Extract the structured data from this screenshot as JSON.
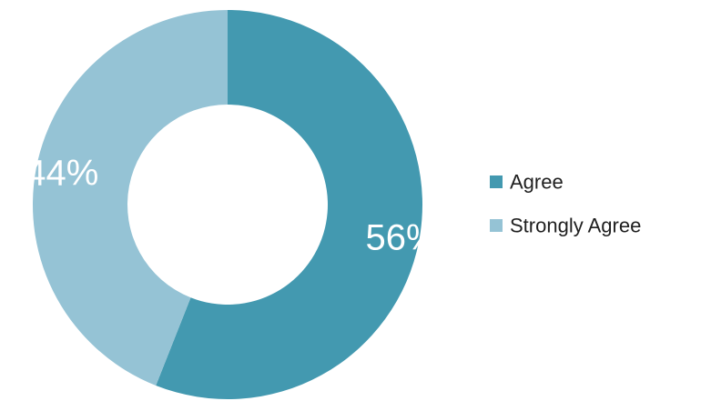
{
  "chart_data": {
    "type": "pie",
    "variant": "donut",
    "categories": [
      "Agree",
      "Strongly Agree"
    ],
    "values": [
      56,
      44
    ],
    "data_labels": [
      "56%",
      "44%"
    ],
    "colors": [
      "#4399b0",
      "#95c3d5"
    ],
    "legend": {
      "position": "right",
      "entries": [
        "Agree",
        "Strongly Agree"
      ]
    },
    "start_angle_deg": 0,
    "direction": "clockwise",
    "title": ""
  }
}
